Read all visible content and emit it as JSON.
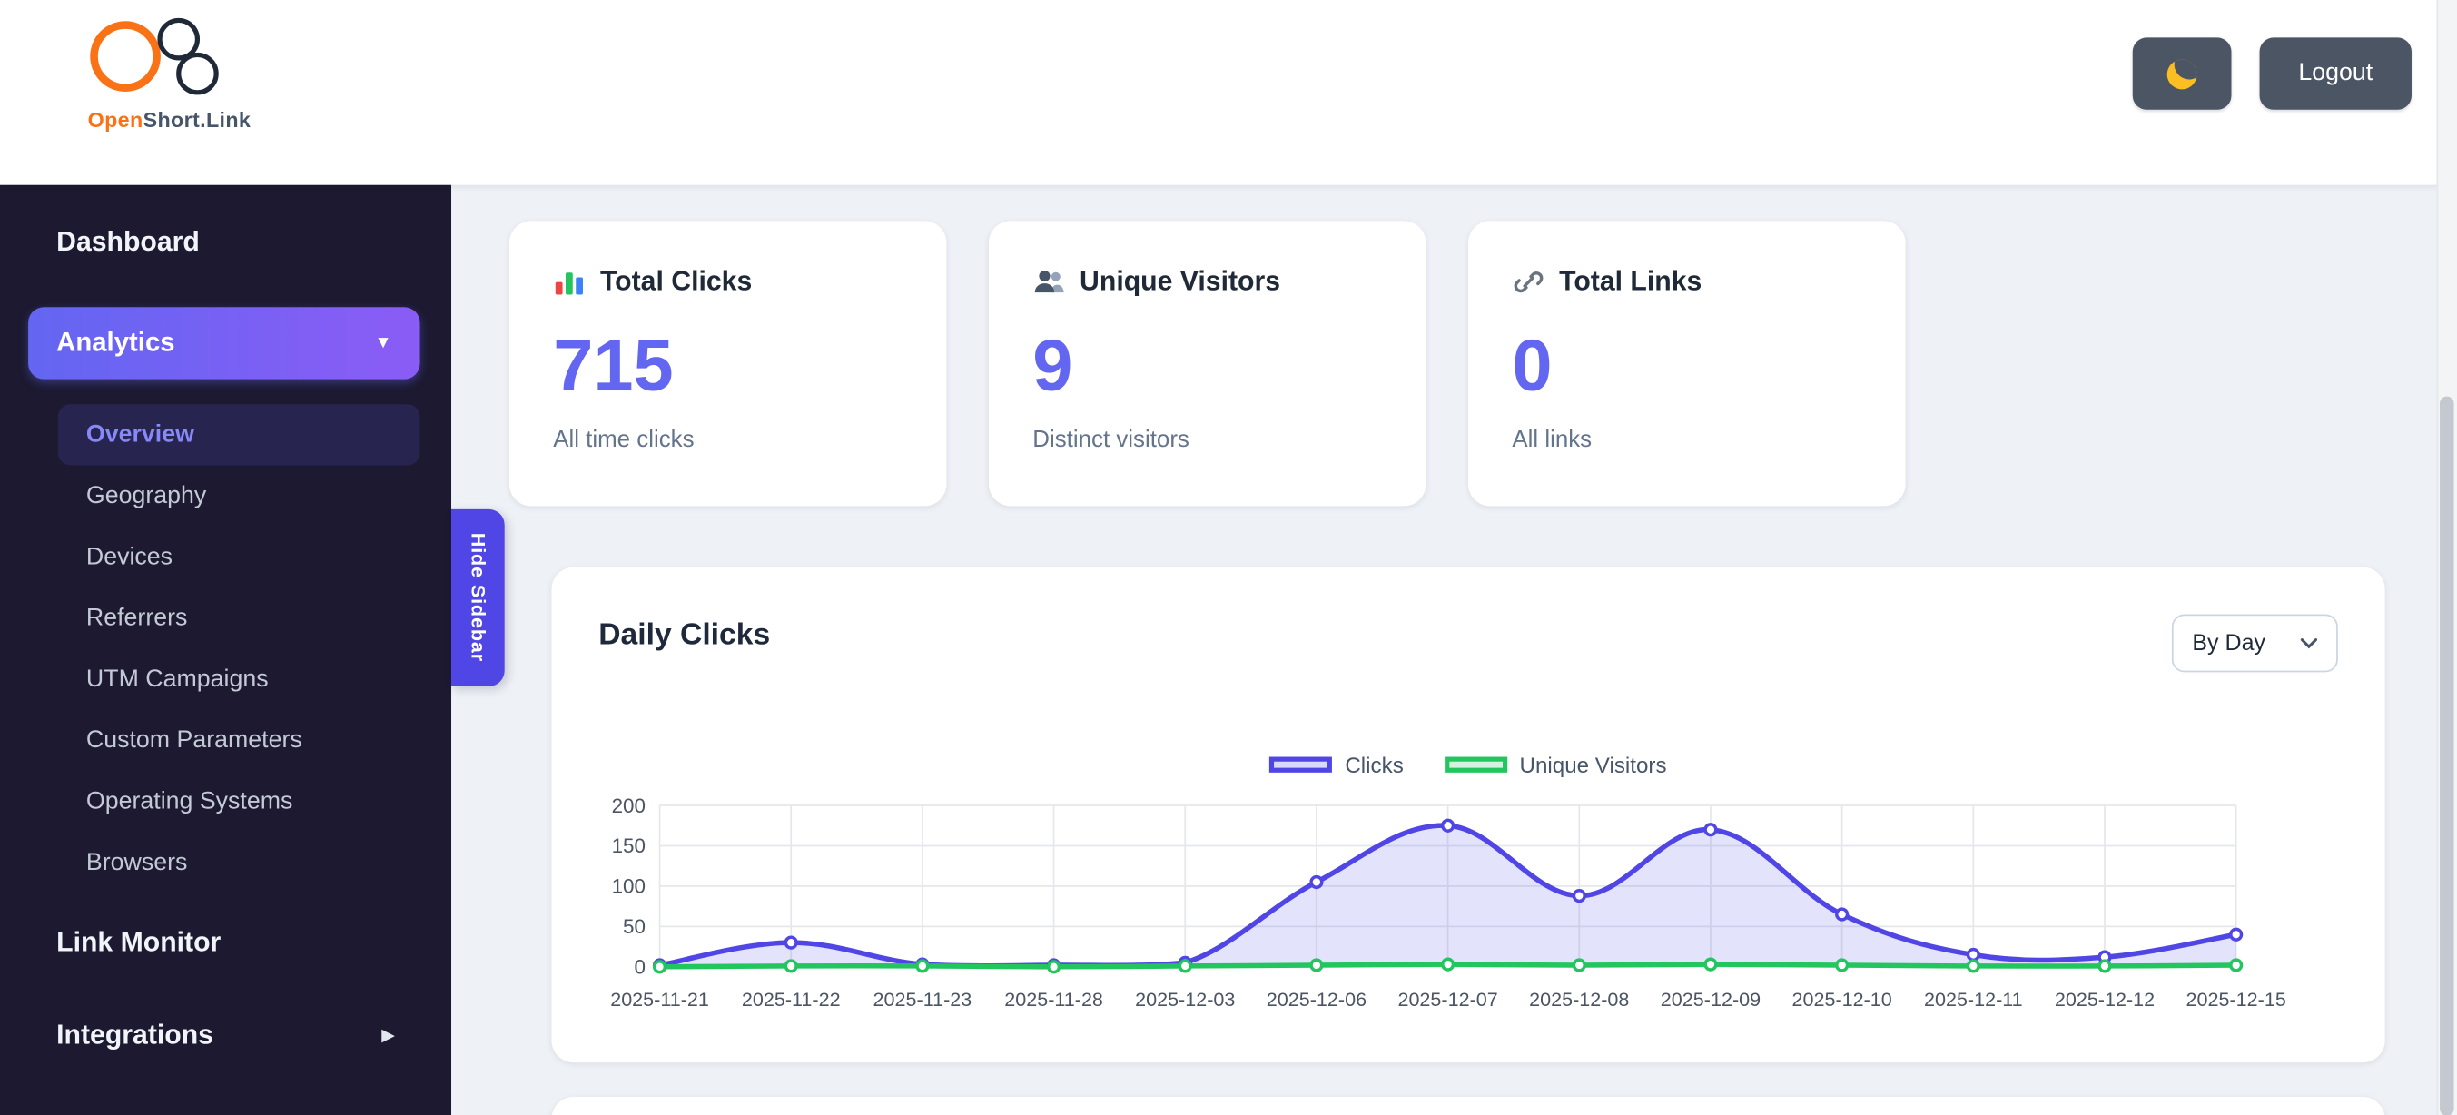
{
  "header": {
    "brand": {
      "name_accent": "Open",
      "name_rest": "Short.Link"
    },
    "logout_label": "Logout"
  },
  "sidebar": {
    "dashboard_label": "Dashboard",
    "analytics": {
      "label": "Analytics",
      "children": [
        "Overview",
        "Geography",
        "Devices",
        "Referrers",
        "UTM Campaigns",
        "Custom Parameters",
        "Operating Systems",
        "Browsers"
      ],
      "active_child": "Overview"
    },
    "link_monitor_label": "Link Monitor",
    "integrations_label": "Integrations",
    "hide_sidebar_label": "Hide Sidebar"
  },
  "stats": [
    {
      "icon": "bar-chart-icon",
      "title": "Total Clicks",
      "value": "715",
      "subtitle": "All time clicks"
    },
    {
      "icon": "people-icon",
      "title": "Unique Visitors",
      "value": "9",
      "subtitle": "Distinct visitors"
    },
    {
      "icon": "link-icon",
      "title": "Total Links",
      "value": "0",
      "subtitle": "All links"
    }
  ],
  "daily_clicks": {
    "title": "Daily Clicks",
    "interval_select_value": "By Day"
  },
  "chart_data": {
    "type": "line",
    "title": "Daily Clicks",
    "x": [
      "2025-11-21",
      "2025-11-22",
      "2025-11-23",
      "2025-11-28",
      "2025-12-03",
      "2025-12-06",
      "2025-12-07",
      "2025-12-08",
      "2025-12-09",
      "2025-12-10",
      "2025-12-11",
      "2025-12-12",
      "2025-12-15"
    ],
    "series": [
      {
        "name": "Clicks",
        "color": "#4f46e5",
        "fill": "rgba(99,102,241,0.18)",
        "legend_fill": "rgba(99,102,241,0.25)",
        "values": [
          2,
          30,
          3,
          2,
          5,
          105,
          175,
          88,
          170,
          65,
          15,
          12,
          40
        ]
      },
      {
        "name": "Unique Visitors",
        "color": "#22c55e",
        "fill": "none",
        "legend_fill": "rgba(34,197,94,0.2)",
        "values": [
          0,
          1,
          1,
          0,
          1,
          2,
          3,
          2,
          3,
          2,
          1,
          1,
          2
        ]
      }
    ],
    "ylim": [
      0,
      200
    ],
    "yticks": [
      0,
      50,
      100,
      150,
      200
    ],
    "grid": true,
    "legend_position": "top"
  },
  "colors": {
    "accent": "#6366f1",
    "sidebar_bg": "#1c1930",
    "brand_orange": "#f97316",
    "positive_green": "#22c55e"
  }
}
